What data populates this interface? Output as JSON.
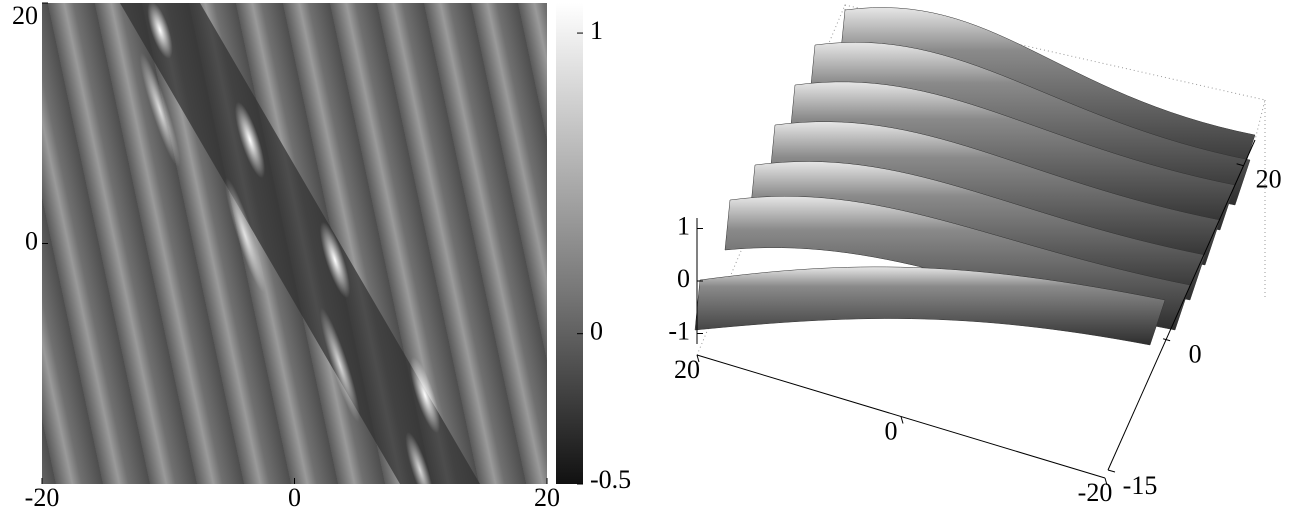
{
  "chart_data": [
    {
      "type": "heatmap",
      "xlim": [
        -20,
        20
      ],
      "ylim": [
        -20,
        20
      ],
      "xticks": [
        -20,
        0,
        20
      ],
      "yticks": [
        0,
        20
      ],
      "clim": [
        -0.5,
        1.1
      ],
      "cticks": [
        -0.5,
        0,
        1
      ]
    },
    {
      "type": "surface3d",
      "xlim": [
        20,
        -20
      ],
      "ylim": [
        -15,
        25
      ],
      "zlim": [
        -1.2,
        1.2
      ],
      "xticks": [
        20,
        0,
        -20
      ],
      "yticks": [
        -15,
        0,
        20
      ],
      "zticks": [
        -1,
        0,
        1
      ]
    }
  ]
}
